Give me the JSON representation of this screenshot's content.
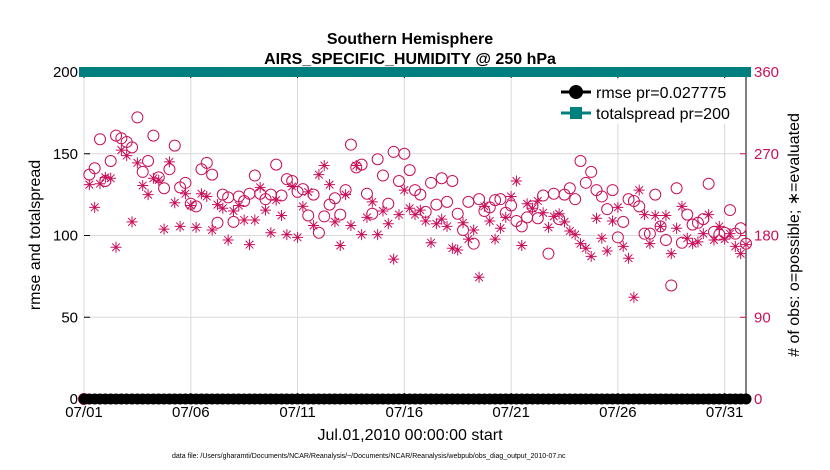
{
  "colors": {
    "accent": "#c8105b",
    "teal": "#007f7f",
    "black": "#000000",
    "grid": "#d9d9d9"
  },
  "chart_data": {
    "type": "scatter",
    "title": "Southern Hemisphere",
    "subtitle": "AIRS_SPECIFIC_HUMIDITY @ 250 hPa",
    "xlabel": "Jul.01,2010 00:00:00 start",
    "ylabel_left": "rmse and totalspread",
    "ylabel_right": "# of obs: o=possible; ∗=evaluated",
    "xlim": [
      1,
      32
    ],
    "ylim_left": [
      0,
      200
    ],
    "ylim_right": [
      0,
      360
    ],
    "x_tick_values": [
      1,
      6,
      11,
      16,
      21,
      26,
      31
    ],
    "x_tick_labels": [
      "07/01",
      "07/06",
      "07/11",
      "07/16",
      "07/21",
      "07/26",
      "07/31"
    ],
    "y_left_ticks": [
      0,
      50,
      100,
      150,
      200
    ],
    "y_right_ticks": [
      0,
      90,
      180,
      270,
      360
    ],
    "legend_position": "top-right",
    "series": [
      {
        "name": "rmse pr=0.027775",
        "axis": "left",
        "marker": "filled-circle",
        "color": "#000000",
        "x_start": 1,
        "x_step": 0.25,
        "count": 125,
        "value": 0.03
      },
      {
        "name": "totalspread pr=200",
        "axis": "left",
        "marker": "filled-square",
        "color": "#007f7f",
        "x_start": 1,
        "x_step": 0.25,
        "count": 125,
        "value": 200
      }
    ],
    "obs_possible": {
      "name": "possible",
      "axis": "right",
      "marker": "open-circle",
      "x_start": 1,
      "x_step": 0.25,
      "values": [
        0,
        247,
        254,
        286,
        240,
        262,
        290,
        287,
        283,
        277,
        310,
        250,
        262,
        290,
        244,
        232,
        253,
        279,
        233,
        238,
        215,
        212,
        253,
        260,
        247,
        194,
        225,
        222,
        195,
        223,
        218,
        226,
        246,
        226,
        220,
        225,
        258,
        224,
        242,
        240,
        228,
        231,
        202,
        225,
        183,
        201,
        214,
        221,
        203,
        230,
        280,
        255,
        258,
        226,
        204,
        264,
        246,
        215,
        272,
        240,
        270,
        252,
        230,
        225,
        206,
        238,
        214,
        243,
        217,
        240,
        204,
        186,
        217,
        171,
        220,
        207,
        211,
        219,
        220,
        205,
        213,
        196,
        190,
        200,
        212,
        199,
        224,
        160,
        226,
        198,
        225,
        232,
        220,
        262,
        238,
        250,
        230,
        223,
        209,
        230,
        178,
        195,
        220,
        218,
        212,
        182,
        182,
        225,
        190,
        175,
        125,
        232,
        172,
        203,
        192,
        194,
        198,
        237,
        184,
        181,
        183,
        208,
        182,
        188,
        171
      ]
    },
    "obs_evaluated": {
      "name": "evaluated",
      "axis": "right",
      "marker": "asterisk",
      "x_start": 1,
      "x_step": 0.25,
      "values": [
        0,
        236,
        211,
        237,
        244,
        243,
        167,
        274,
        268,
        195,
        260,
        235,
        225,
        243,
        241,
        187,
        261,
        216,
        190,
        226,
        213,
        189,
        226,
        223,
        186,
        214,
        210,
        175,
        207,
        213,
        197,
        170,
        197,
        233,
        208,
        183,
        219,
        202,
        181,
        234,
        178,
        212,
        228,
        191,
        247,
        257,
        236,
        195,
        169,
        225,
        191,
        257,
        181,
        200,
        217,
        181,
        207,
        193,
        154,
        203,
        230,
        210,
        203,
        208,
        196,
        172,
        193,
        198,
        190,
        166,
        164,
        194,
        176,
        186,
        134,
        212,
        196,
        176,
        188,
        200,
        223,
        240,
        169,
        215,
        210,
        218,
        205,
        189,
        201,
        204,
        195,
        185,
        181,
        171,
        166,
        157,
        199,
        177,
        163,
        196,
        211,
        168,
        155,
        112,
        230,
        203,
        171,
        202,
        190,
        202,
        160,
        188,
        212,
        177,
        171,
        173,
        182,
        203,
        175,
        190,
        176,
        182,
        168,
        160,
        170
      ]
    }
  },
  "footer": {
    "text": "data file: /Users/gharamti/Documents/NCAR/Reanalysis/~/Documents/NCAR/Reanalysis/webpub/obs_diag_output_2010-07.nc"
  }
}
